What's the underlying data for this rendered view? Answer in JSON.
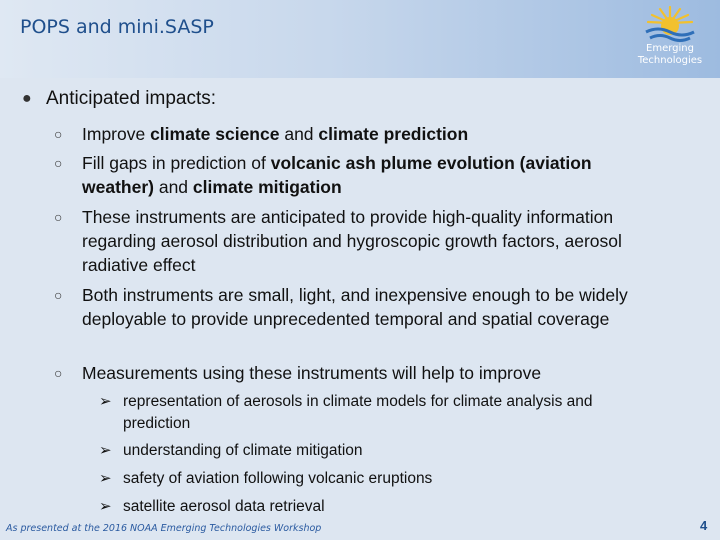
{
  "header": {
    "title": "POPS and mini.SASP",
    "logo_line1": "Emerging",
    "logo_line2": "Technologies"
  },
  "main": {
    "heading": "Anticipated impacts:",
    "points": [
      {
        "plain1": "Improve ",
        "bold1": "climate science",
        "plain2": " and ",
        "bold2": "climate prediction",
        "plain3": ""
      },
      {
        "plain1": "Fill gaps in prediction of ",
        "bold1": "volcanic ash plume evolution (aviation weather)",
        "plain2": " and ",
        "bold2": "climate mitigation",
        "plain3": ""
      },
      {
        "text": "These instruments are anticipated to provide high-quality information regarding aerosol distribution and hygroscopic growth factors, aerosol radiative effect"
      },
      {
        "text": "Both instruments are small, light, and inexpensive enough to be widely deployable to provide unprecedented temporal and spatial coverage"
      },
      {
        "text": "Measurements using these instruments will help to improve"
      }
    ],
    "subpoints": [
      "representation of aerosols in climate models for climate analysis and prediction",
      "understanding of climate mitigation",
      "safety of aviation following volcanic eruptions",
      "satellite aerosol data retrieval"
    ]
  },
  "footer": {
    "note": "As presented at the 2016 NOAA Emerging Technologies Workshop",
    "page_number": "4"
  },
  "icons": {
    "logo": "sun-over-waves-icon",
    "bullet_l1": "filled-circle-bullet",
    "bullet_l2": "hollow-circle-bullet",
    "bullet_l3": "arrow-bullet"
  },
  "colors": {
    "title": "#1f4f8c",
    "sun": "#f2c12e",
    "waves": "#2f6fb8",
    "footer_text": "#2a5aa0"
  }
}
